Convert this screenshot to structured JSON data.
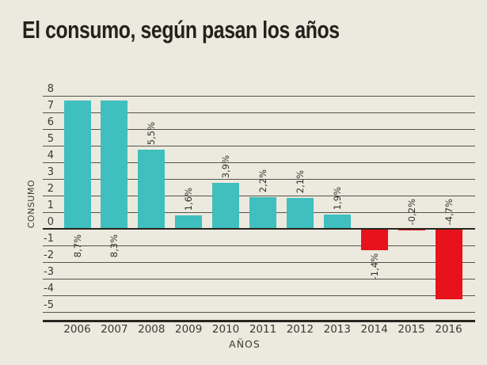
{
  "page": {
    "background": "#ece9de"
  },
  "chart_data": {
    "type": "bar",
    "title": "El consumo, según pasan los años",
    "xlabel": "AÑOS",
    "ylabel": "CONSUMO",
    "categories": [
      "2006",
      "2007",
      "2008",
      "2009",
      "2010",
      "2011",
      "2012",
      "2013",
      "2014",
      "2015",
      "2016"
    ],
    "values": [
      8.7,
      8.3,
      5.5,
      1.6,
      3.9,
      2.2,
      2.1,
      1.9,
      -1.4,
      -0.2,
      -4.7
    ],
    "value_labels": [
      "8,7%",
      "8,3%",
      "5,5%",
      "1,6%",
      "3,9%",
      "2,2%",
      "2,1%",
      "1,9%",
      "-1,4%",
      "-0,2%",
      "-4,7%"
    ],
    "yticks": [
      8,
      7,
      6,
      5,
      4,
      3,
      2,
      1,
      0,
      -1,
      -2,
      -3,
      -4,
      -5
    ],
    "ylim": [
      -5,
      8
    ],
    "grid": true,
    "positive_color": "#3fbfbd",
    "negative_color": "#e8121c",
    "layout_hints": {
      "drawn_units": [
        7.75,
        7.75,
        4.8,
        0.85,
        2.8,
        1.95,
        1.9,
        0.9,
        -1.25,
        -0.05,
        -4.2
      ],
      "label_placement": [
        "below-zero",
        "below-zero",
        "above-bar",
        "above-bar",
        "above-bar",
        "above-bar",
        "above-bar",
        "above-bar",
        "below-bar",
        "above-zero",
        "above-zero"
      ]
    }
  }
}
